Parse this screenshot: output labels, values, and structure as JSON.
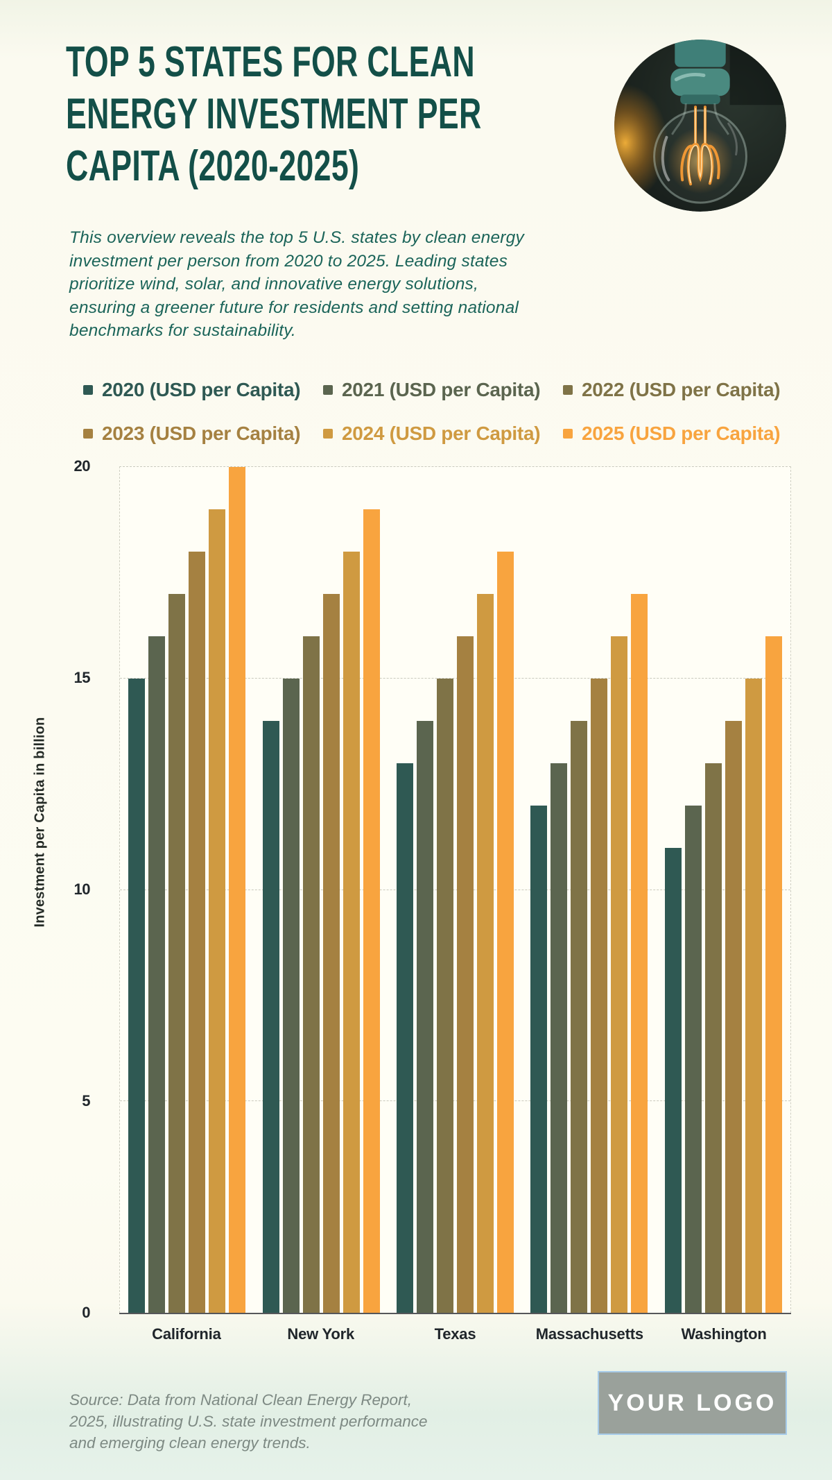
{
  "header": {
    "title_lines": [
      "TOP 5 STATES FOR CLEAN",
      "ENERGY INVESTMENT PER",
      "CAPITA (2020-2025)"
    ],
    "description": "This overview reveals the top 5 U.S. states by clean energy investment per person from 2020 to 2025. Leading states prioritize wind, solar, and innovative energy solutions, ensuring a greener future for residents and setting national benchmarks for sustainability."
  },
  "hero": {
    "image_name": "light-bulb-photo"
  },
  "chart_data": {
    "type": "bar",
    "categories": [
      "California",
      "New York",
      "Texas",
      "Massachusetts",
      "Washington"
    ],
    "series": [
      {
        "name": "2020 (USD per Capita)",
        "color": "#2f5953",
        "values": [
          15,
          14,
          13,
          12,
          11
        ]
      },
      {
        "name": "2021 (USD per Capita)",
        "color": "#5b654f",
        "values": [
          16,
          15,
          14,
          13,
          12
        ]
      },
      {
        "name": "2022 (USD per Capita)",
        "color": "#7f7347",
        "values": [
          17,
          16,
          15,
          14,
          13
        ]
      },
      {
        "name": "2023 (USD per Capita)",
        "color": "#a58141",
        "values": [
          18,
          17,
          16,
          15,
          14
        ]
      },
      {
        "name": "2024 (USD per Capita)",
        "color": "#cf9a41",
        "values": [
          19,
          18,
          17,
          16,
          15
        ]
      },
      {
        "name": "2025 (USD per Capita)",
        "color": "#f8a43f",
        "values": [
          20,
          19,
          18,
          17,
          16
        ]
      }
    ],
    "ylabel": "Investment per Capita in billion",
    "ylim": [
      0,
      20
    ],
    "yticks": [
      0,
      5,
      10,
      15,
      20
    ],
    "grid": true,
    "legend_position": "top"
  },
  "footer": {
    "source": "Source: Data from National Clean Energy Report, 2025, illustrating U.S. state investment performance and emerging clean energy trends.",
    "logo_text": "YOUR LOGO"
  },
  "colors": {
    "page_background": "#fdfcf2",
    "footer_background": "#e3f0e7",
    "title": "#134f48",
    "description": "#1b6459",
    "axis_text": "#20262b",
    "source_text": "#7d8983",
    "logo_background": "#9aa19b",
    "logo_border": "#a6cbe9",
    "gridline": "#c9c9bd"
  }
}
